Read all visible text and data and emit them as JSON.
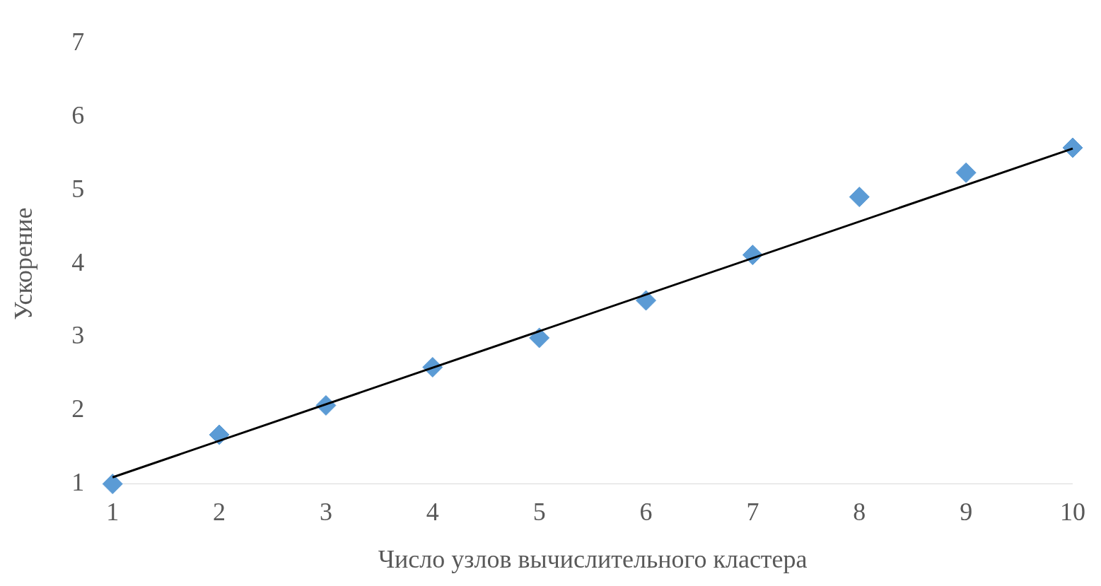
{
  "chart_data": {
    "type": "scatter",
    "xlabel": "Число узлов вычислительного кластера",
    "ylabel": "Ускорение",
    "x": [
      1,
      2,
      3,
      4,
      5,
      6,
      7,
      8,
      9,
      10
    ],
    "xlim": [
      1,
      10
    ],
    "xticks": [
      1,
      2,
      3,
      4,
      5,
      6,
      7,
      8,
      9,
      10
    ],
    "ylim": [
      1,
      7
    ],
    "yticks": [
      1,
      2,
      3,
      4,
      5,
      6,
      7
    ],
    "grid": false,
    "legend": false,
    "marker": "diamond",
    "series": [
      {
        "color": "#5b9bd5",
        "values": [
          1.0,
          1.67,
          2.07,
          2.59,
          2.99,
          3.5,
          4.12,
          4.91,
          5.24,
          5.58
        ]
      },
      {
        "type": "line",
        "x": [
          1,
          10
        ],
        "values": [
          1.09,
          5.57
        ],
        "color": "#000000",
        "marker": "none",
        "line_style": "solid"
      }
    ]
  }
}
